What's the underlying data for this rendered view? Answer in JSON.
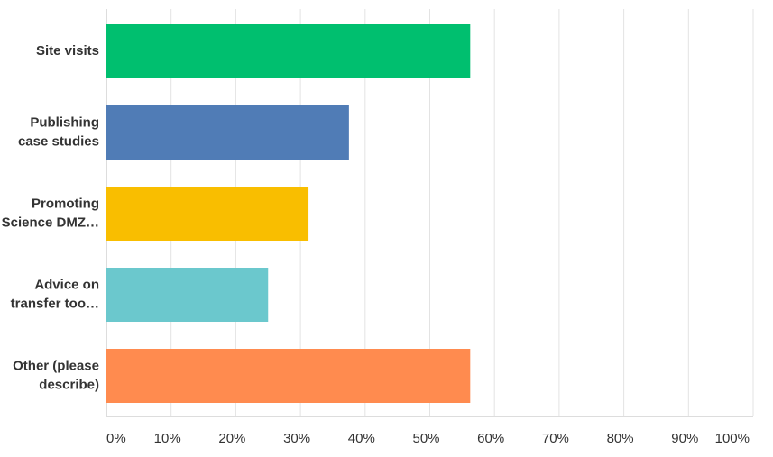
{
  "chart_data": {
    "type": "bar",
    "orientation": "horizontal",
    "categories": [
      [
        "Site visits"
      ],
      [
        "Publishing",
        "case studies"
      ],
      [
        "Promoting",
        "Science DMZ…"
      ],
      [
        "Advice on",
        "transfer too…"
      ],
      [
        "Other (please",
        "describe)"
      ]
    ],
    "values": [
      56.25,
      37.5,
      31.25,
      25,
      56.25
    ],
    "colors": [
      "#00bf6f",
      "#507cb6",
      "#f9be00",
      "#6bc8cd",
      "#ff8b4f"
    ],
    "xlim": [
      0,
      100
    ],
    "xticks": [
      {
        "value": 0,
        "label": "0%"
      },
      {
        "value": 10,
        "label": "10%"
      },
      {
        "value": 20,
        "label": "20%"
      },
      {
        "value": 30,
        "label": "30%"
      },
      {
        "value": 40,
        "label": "40%"
      },
      {
        "value": 50,
        "label": "50%"
      },
      {
        "value": 60,
        "label": "60%"
      },
      {
        "value": 70,
        "label": "70%"
      },
      {
        "value": 80,
        "label": "80%"
      },
      {
        "value": 90,
        "label": "90%"
      },
      {
        "value": 100,
        "label": "100%"
      }
    ],
    "grid": true
  }
}
